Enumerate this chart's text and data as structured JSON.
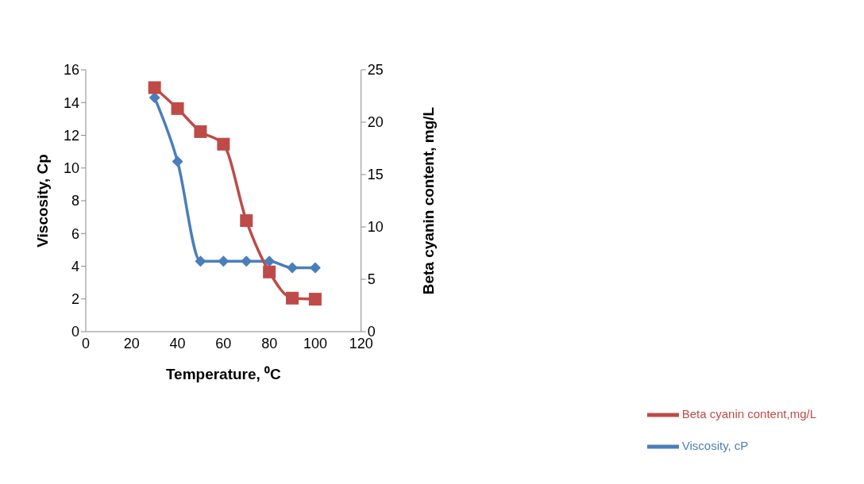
{
  "chart_data": {
    "type": "line",
    "xlabel": "Temperature, ⁰C",
    "ylabel": "Viscosity, Cp",
    "y2label": "Beta cyanin content, mg/L",
    "x": [
      30,
      40,
      50,
      60,
      70,
      80,
      90,
      100
    ],
    "series": [
      {
        "name": "Viscosity, cP",
        "color": "#4a7ebb",
        "marker": "diamond",
        "values": [
          14.3,
          10.4,
          4.3,
          4.3,
          4.3,
          4.3,
          3.9,
          3.9
        ]
      },
      {
        "name": "Beta cyanin content,mg/L",
        "color": "#be4b48",
        "marker": "square",
        "axis": "y2",
        "values": [
          23.3,
          21.3,
          19.1,
          17.9,
          10.6,
          5.7,
          3.2,
          3.1
        ]
      }
    ],
    "xlim": [
      0,
      120
    ],
    "xticks": [
      0,
      20,
      40,
      60,
      80,
      100,
      120
    ],
    "ylim": [
      0,
      16
    ],
    "yticks": [
      0,
      2,
      4,
      6,
      8,
      10,
      12,
      14,
      16
    ],
    "y2lim": [
      0,
      25
    ],
    "y2ticks": [
      0,
      5,
      10,
      15,
      20,
      25
    ],
    "grid": false,
    "legend": "bottom right"
  }
}
